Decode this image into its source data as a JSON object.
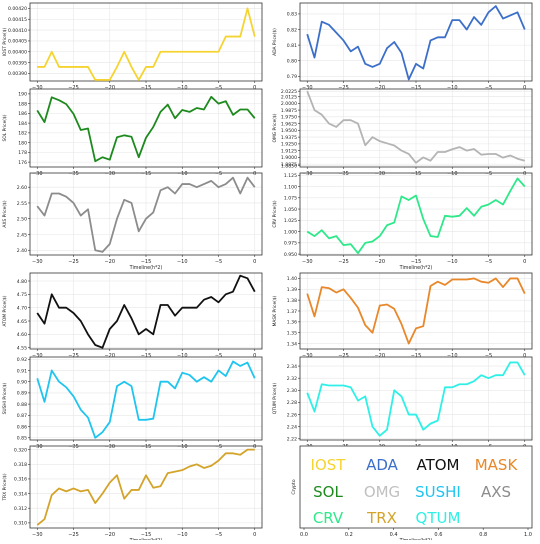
{
  "chart_data": [
    {
      "type": "line",
      "id": "iost",
      "ylabel": "IOST Price($)",
      "color": "#f5d431",
      "xlim": [
        -31,
        1
      ],
      "ylim": [
        0.003865,
        0.004225
      ],
      "yticks": [
        "0.00390",
        "0.00395",
        "0.00400",
        "0.00405",
        "0.00410",
        "0.00415",
        "0.00420"
      ],
      "ytick_vals": [
        0.0039,
        0.00395,
        0.004,
        0.00405,
        0.0041,
        0.00415,
        0.0042
      ],
      "xticks": [
        -30,
        -25,
        -20,
        -15,
        -10,
        -5,
        0
      ],
      "x": [
        -30,
        -29,
        -28,
        -27,
        -26,
        -25,
        -24,
        -23,
        -22,
        -21,
        -20,
        -19,
        -18,
        -17,
        -16,
        -15,
        -14,
        -13,
        -12,
        -11,
        -10,
        -9,
        -8,
        -7,
        -6,
        -5,
        -4,
        -3,
        -2,
        -1,
        0
      ],
      "values": [
        0.00393,
        0.00393,
        0.004,
        0.00393,
        0.00393,
        0.00393,
        0.00393,
        0.00393,
        0.00387,
        0.00387,
        0.00387,
        0.00393,
        0.004,
        0.00393,
        0.00387,
        0.00393,
        0.00393,
        0.004,
        0.004,
        0.004,
        0.004,
        0.004,
        0.004,
        0.004,
        0.004,
        0.004,
        0.00407,
        0.00407,
        0.00407,
        0.0042,
        0.00407
      ],
      "xlabel": ""
    },
    {
      "type": "line",
      "id": "ada",
      "ylabel": "ADA Price($)",
      "color": "#3c6fc9",
      "xlim": [
        -31,
        1
      ],
      "ylim": [
        0.787,
        0.837
      ],
      "yticks": [
        "0.79",
        "0.80",
        "0.81",
        "0.82",
        "0.83"
      ],
      "ytick_vals": [
        0.79,
        0.8,
        0.81,
        0.82,
        0.83
      ],
      "xticks": [
        -30,
        -25,
        -20,
        -15,
        -10,
        -5,
        0
      ],
      "x": [
        -30,
        -29,
        -28,
        -27,
        -26,
        -25,
        -24,
        -23,
        -22,
        -21,
        -20,
        -19,
        -18,
        -17,
        -16,
        -15,
        -14,
        -13,
        -12,
        -11,
        -10,
        -9,
        -8,
        -7,
        -6,
        -5,
        -4,
        -3,
        -2,
        -1,
        0
      ],
      "values": [
        0.817,
        0.802,
        0.825,
        0.823,
        0.818,
        0.813,
        0.806,
        0.809,
        0.798,
        0.796,
        0.798,
        0.808,
        0.812,
        0.805,
        0.788,
        0.798,
        0.795,
        0.813,
        0.815,
        0.815,
        0.826,
        0.826,
        0.82,
        0.828,
        0.823,
        0.831,
        0.835,
        0.827,
        0.829,
        0.831,
        0.82
      ],
      "xlabel": ""
    },
    {
      "type": "line",
      "id": "sol",
      "ylabel": "SOL Price($)",
      "color": "#1d8a1d",
      "xlim": [
        -31,
        1
      ],
      "ylim": [
        175,
        191
      ],
      "yticks": [
        "176",
        "178",
        "180",
        "182",
        "184",
        "186",
        "188",
        "190"
      ],
      "ytick_vals": [
        176,
        178,
        180,
        182,
        184,
        186,
        188,
        190
      ],
      "xticks": [
        -30,
        -25,
        -20,
        -15,
        -10,
        -5,
        0
      ],
      "x": [
        -30,
        -29,
        -28,
        -27,
        -26,
        -25,
        -24,
        -23,
        -22,
        -21,
        -20,
        -19,
        -18,
        -17,
        -16,
        -15,
        -14,
        -13,
        -12,
        -11,
        -10,
        -9,
        -8,
        -7,
        -6,
        -5,
        -4,
        -3,
        -2,
        -1,
        0
      ],
      "values": [
        186.6,
        184.2,
        189.3,
        188.7,
        187.9,
        185.9,
        182.6,
        182.9,
        176.2,
        177,
        176.5,
        181.1,
        181.5,
        181.2,
        177,
        181,
        183.2,
        186.3,
        187.8,
        185,
        186.7,
        186.3,
        187.1,
        186.8,
        189.4,
        188,
        188.5,
        185.7,
        186.8,
        186.8,
        185
      ],
      "xlabel": ""
    },
    {
      "type": "line",
      "id": "omg",
      "ylabel": "OMG Price($)",
      "color": "#b4b4b4",
      "xlim": [
        -31,
        1
      ],
      "ylim": [
        1.8822,
        2.0265
      ],
      "yticks": [
        "1.8850",
        "1.8875",
        "1.9000",
        "1.9125",
        "1.9250",
        "1.9375",
        "1.9500",
        "1.9625",
        "1.9750",
        "1.9875",
        "2.0000",
        "2.0125",
        "2.0225"
      ],
      "ytick_vals": [
        1.885,
        1.8875,
        1.9,
        1.9125,
        1.925,
        1.9375,
        1.95,
        1.9625,
        1.975,
        1.9875,
        2,
        2.0125,
        2.0225
      ],
      "xticks": [
        -30,
        -25,
        -20,
        -15,
        -10,
        -5,
        0
      ],
      "x": [
        -30,
        -29,
        -28,
        -27,
        -26,
        -25,
        -24,
        -23,
        -22,
        -21,
        -20,
        -19,
        -18,
        -17,
        -16,
        -15,
        -14,
        -13,
        -12,
        -11,
        -10,
        -9,
        -8,
        -7,
        -6,
        -5,
        -4,
        -3,
        -2,
        -1,
        0
      ],
      "values": [
        2.0225,
        1.9875,
        1.979,
        1.9625,
        1.9563,
        1.9688,
        1.9688,
        1.9625,
        1.9225,
        1.9375,
        1.93,
        1.926,
        1.922,
        1.9125,
        1.9063,
        1.89,
        1.9,
        1.8938,
        1.91,
        1.91,
        1.915,
        1.919,
        1.9125,
        1.9155,
        1.905,
        1.9063,
        1.9063,
        1.8995,
        1.9035,
        1.8975,
        1.8938
      ],
      "xlabel": ""
    },
    {
      "type": "line",
      "id": "axs",
      "ylabel": "AXS Price($)",
      "color": "#8c8c8c",
      "xlim": [
        -31,
        1
      ],
      "ylim": [
        2.385,
        2.645
      ],
      "yticks": [
        "2.40",
        "2.45",
        "2.50",
        "2.55",
        "2.60"
      ],
      "ytick_vals": [
        2.4,
        2.45,
        2.5,
        2.55,
        2.6
      ],
      "xticks": [
        -30,
        -25,
        -20,
        -15,
        -10,
        -5,
        0
      ],
      "x": [
        -30,
        -29,
        -28,
        -27,
        -26,
        -25,
        -24,
        -23,
        -22,
        -21,
        -20,
        -19,
        -18,
        -17,
        -16,
        -15,
        -14,
        -13,
        -12,
        -11,
        -10,
        -9,
        -8,
        -7,
        -6,
        -5,
        -4,
        -3,
        -2,
        -1,
        0
      ],
      "values": [
        2.54,
        2.51,
        2.58,
        2.58,
        2.57,
        2.55,
        2.51,
        2.53,
        2.4,
        2.395,
        2.42,
        2.5,
        2.56,
        2.55,
        2.46,
        2.5,
        2.52,
        2.59,
        2.6,
        2.58,
        2.61,
        2.61,
        2.6,
        2.61,
        2.62,
        2.6,
        2.61,
        2.63,
        2.58,
        2.63,
        2.6
      ],
      "xlabel": "Timeline(h*2)"
    },
    {
      "type": "line",
      "id": "crv",
      "ylabel": "CRV Price($)",
      "color": "#2ee88a",
      "xlim": [
        -31,
        1
      ],
      "ylim": [
        0.948,
        1.13
      ],
      "yticks": [
        "0.950",
        "0.975",
        "1.000",
        "1.025",
        "1.050",
        "1.075",
        "1.100",
        "1.125"
      ],
      "ytick_vals": [
        0.95,
        0.975,
        1,
        1.025,
        1.05,
        1.075,
        1.1,
        1.125
      ],
      "xticks": [
        -30,
        -25,
        -20,
        -15,
        -10,
        -5,
        0
      ],
      "x": [
        -30,
        -29,
        -28,
        -27,
        -26,
        -25,
        -24,
        -23,
        -22,
        -21,
        -20,
        -19,
        -18,
        -17,
        -16,
        -15,
        -14,
        -13,
        -12,
        -11,
        -10,
        -9,
        -8,
        -7,
        -6,
        -5,
        -4,
        -3,
        -2,
        -1,
        0
      ],
      "values": [
        1,
        0.99,
        1.003,
        0.985,
        0.99,
        0.97,
        0.972,
        0.952,
        0.975,
        0.978,
        0.99,
        1.014,
        1.02,
        1.078,
        1.07,
        1.08,
        1.028,
        0.99,
        0.988,
        1.035,
        1.033,
        1.035,
        1.052,
        1.035,
        1.055,
        1.06,
        1.07,
        1.06,
        1.09,
        1.118,
        1.1
      ],
      "xlabel": "Timeline(h*2)"
    },
    {
      "type": "line",
      "id": "atom",
      "ylabel": "ATOM Price($)",
      "color": "#111111",
      "xlim": [
        -31,
        1
      ],
      "ylim": [
        4.545,
        4.83
      ],
      "yticks": [
        "4.55",
        "4.60",
        "4.65",
        "4.70",
        "4.75",
        "4.80"
      ],
      "ytick_vals": [
        4.55,
        4.6,
        4.65,
        4.7,
        4.75,
        4.8
      ],
      "xticks": [
        -30,
        -25,
        -20,
        -15,
        -10,
        -5,
        0
      ],
      "x": [
        -30,
        -29,
        -28,
        -27,
        -26,
        -25,
        -24,
        -23,
        -22,
        -21,
        -20,
        -19,
        -18,
        -17,
        -16,
        -15,
        -14,
        -13,
        -12,
        -11,
        -10,
        -9,
        -8,
        -7,
        -6,
        -5,
        -4,
        -3,
        -2,
        -1,
        0
      ],
      "values": [
        4.68,
        4.64,
        4.75,
        4.7,
        4.7,
        4.68,
        4.65,
        4.6,
        4.56,
        4.55,
        4.62,
        4.65,
        4.71,
        4.66,
        4.6,
        4.62,
        4.6,
        4.71,
        4.71,
        4.67,
        4.7,
        4.7,
        4.7,
        4.73,
        4.74,
        4.72,
        4.75,
        4.76,
        4.82,
        4.81,
        4.76
      ],
      "xlabel": ""
    },
    {
      "type": "line",
      "id": "mask",
      "ylabel": "MASK Price($)",
      "color": "#e8882a",
      "xlim": [
        -31,
        1
      ],
      "ylim": [
        1.335,
        1.405
      ],
      "yticks": [
        "1.34",
        "1.35",
        "1.36",
        "1.37",
        "1.38",
        "1.39",
        "1.40"
      ],
      "ytick_vals": [
        1.34,
        1.35,
        1.36,
        1.37,
        1.38,
        1.39,
        1.4
      ],
      "xticks": [
        -30,
        -25,
        -20,
        -15,
        -10,
        -5,
        0
      ],
      "x": [
        -30,
        -29,
        -28,
        -27,
        -26,
        -25,
        -24,
        -23,
        -22,
        -21,
        -20,
        -19,
        -18,
        -17,
        -16,
        -15,
        -14,
        -13,
        -12,
        -11,
        -10,
        -9,
        -8,
        -7,
        -6,
        -5,
        -4,
        -3,
        -2,
        -1,
        0
      ],
      "values": [
        1.386,
        1.365,
        1.392,
        1.391,
        1.387,
        1.39,
        1.382,
        1.373,
        1.357,
        1.35,
        1.375,
        1.376,
        1.372,
        1.358,
        1.34,
        1.354,
        1.356,
        1.393,
        1.397,
        1.394,
        1.399,
        1.399,
        1.399,
        1.4,
        1.397,
        1.396,
        1.4,
        1.392,
        1.4,
        1.4,
        1.386
      ],
      "xlabel": ""
    },
    {
      "type": "line",
      "id": "sushi",
      "ylabel": "SUSHI Price($)",
      "color": "#1fc4ef",
      "xlim": [
        -31,
        1
      ],
      "ylim": [
        0.848,
        0.922
      ],
      "yticks": [
        "0.85",
        "0.86",
        "0.87",
        "0.88",
        "0.89",
        "0.90",
        "0.91",
        "0.92"
      ],
      "ytick_vals": [
        0.85,
        0.86,
        0.87,
        0.88,
        0.89,
        0.9,
        0.91,
        0.92
      ],
      "xticks": [
        -30,
        -25,
        -20,
        -15,
        -10,
        -5,
        0
      ],
      "x": [
        -30,
        -29,
        -28,
        -27,
        -26,
        -25,
        -24,
        -23,
        -22,
        -21,
        -20,
        -19,
        -18,
        -17,
        -16,
        -15,
        -14,
        -13,
        -12,
        -11,
        -10,
        -9,
        -8,
        -7,
        -6,
        -5,
        -4,
        -3,
        -2,
        -1,
        0
      ],
      "values": [
        0.903,
        0.882,
        0.91,
        0.9,
        0.895,
        0.887,
        0.875,
        0.868,
        0.85,
        0.855,
        0.864,
        0.896,
        0.9,
        0.896,
        0.866,
        0.866,
        0.867,
        0.9,
        0.9,
        0.894,
        0.908,
        0.906,
        0.9,
        0.904,
        0.9,
        0.91,
        0.905,
        0.918,
        0.914,
        0.917,
        0.903
      ],
      "xlabel": ""
    },
    {
      "type": "line",
      "id": "qtum",
      "ylabel": "QTUM Price($)",
      "color": "#2ef0e6",
      "xlim": [
        -31,
        1
      ],
      "ylim": [
        2.218,
        2.355
      ],
      "yticks": [
        "2.22",
        "2.24",
        "2.26",
        "2.28",
        "2.30",
        "2.32",
        "2.34"
      ],
      "ytick_vals": [
        2.22,
        2.24,
        2.26,
        2.28,
        2.3,
        2.32,
        2.34
      ],
      "xticks": [
        -30,
        -25,
        -20,
        -15,
        -10,
        -5,
        0
      ],
      "x": [
        -30,
        -29,
        -28,
        -27,
        -26,
        -25,
        -24,
        -23,
        -22,
        -21,
        -20,
        -19,
        -18,
        -17,
        -16,
        -15,
        -14,
        -13,
        -12,
        -11,
        -10,
        -9,
        -8,
        -7,
        -6,
        -5,
        -4,
        -3,
        -2,
        -1,
        0
      ],
      "values": [
        2.296,
        2.265,
        2.31,
        2.308,
        2.308,
        2.308,
        2.305,
        2.283,
        2.29,
        2.24,
        2.225,
        2.235,
        2.3,
        2.29,
        2.26,
        2.26,
        2.235,
        2.245,
        2.25,
        2.305,
        2.305,
        2.31,
        2.31,
        2.315,
        2.325,
        2.32,
        2.325,
        2.325,
        2.346,
        2.346,
        2.325
      ],
      "xlabel": ""
    },
    {
      "type": "line",
      "id": "trx",
      "ylabel": "TRX Price($)",
      "color": "#d4a42a",
      "xlim": [
        -31,
        1
      ],
      "ylim": [
        0.3093,
        0.3205
      ],
      "yticks": [
        "0.310",
        "0.312",
        "0.314",
        "0.316",
        "0.318",
        "0.320"
      ],
      "ytick_vals": [
        0.31,
        0.312,
        0.314,
        0.316,
        0.318,
        0.32
      ],
      "xticks": [
        -30,
        -25,
        -20,
        -15,
        -10,
        -5,
        0
      ],
      "x": [
        -30,
        -29,
        -28,
        -27,
        -26,
        -25,
        -24,
        -23,
        -22,
        -21,
        -20,
        -19,
        -18,
        -17,
        -16,
        -15,
        -14,
        -13,
        -12,
        -11,
        -10,
        -9,
        -8,
        -7,
        -6,
        -5,
        -4,
        -3,
        -2,
        -1,
        0
      ],
      "values": [
        0.3097,
        0.3105,
        0.3138,
        0.3147,
        0.3143,
        0.3147,
        0.3143,
        0.3145,
        0.3127,
        0.314,
        0.3155,
        0.3165,
        0.3133,
        0.3145,
        0.3145,
        0.3165,
        0.3148,
        0.315,
        0.3168,
        0.317,
        0.3172,
        0.3177,
        0.318,
        0.3175,
        0.3178,
        0.3185,
        0.3195,
        0.3195,
        0.3193,
        0.32,
        0.32
      ],
      "xlabel": "Timeline(h*2)"
    }
  ],
  "legend_panel": {
    "ylabel": "Crypto",
    "xlabel": "Timeline(h*2)",
    "xticks": [
      "0.0",
      "0.2",
      "0.4",
      "0.6",
      "0.8",
      "1.0"
    ],
    "entries": [
      {
        "label": "IOST",
        "color": "#f5d431"
      },
      {
        "label": "ADA",
        "color": "#3c6fc9"
      },
      {
        "label": "ATOM",
        "color": "#111111"
      },
      {
        "label": "MASK",
        "color": "#e8882a"
      },
      {
        "label": "SOL",
        "color": "#1d8a1d"
      },
      {
        "label": "OMG",
        "color": "#c0c0c0"
      },
      {
        "label": "SUSHI",
        "color": "#1fc4ef"
      },
      {
        "label": "AXS",
        "color": "#8c8c8c"
      },
      {
        "label": "CRV",
        "color": "#2ee88a"
      },
      {
        "label": "TRX",
        "color": "#d4a42a"
      },
      {
        "label": "QTUM",
        "color": "#2ef0e6"
      }
    ]
  }
}
